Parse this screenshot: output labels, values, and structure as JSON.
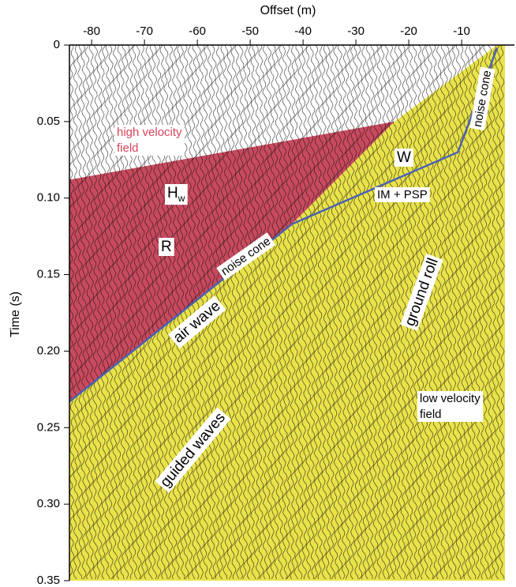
{
  "chart_data": {
    "type": "line",
    "x_label": "Offset (m)",
    "y_label": "Time (s)",
    "xlim": [
      -84.2,
      -1.8
    ],
    "ylim": [
      0,
      0.35
    ],
    "xticks": [
      -80,
      -70,
      -60,
      -50,
      -40,
      -30,
      -20,
      -10
    ],
    "yticks": [
      0,
      0.05,
      {
        "value": 0.1,
        "label": "0.10"
      },
      0.15,
      {
        "value": 0.2,
        "label": "0.20"
      },
      0.25,
      {
        "value": 0.3,
        "label": "0.30"
      },
      0.35
    ],
    "regions": [
      {
        "color": "#c84a5e",
        "x": [
          -84.2,
          -22.7,
          -42.1,
          -84.2
        ],
        "values": [
          0.088,
          0.05,
          0.117,
          0.233
        ]
      },
      {
        "color": "#e9e24a",
        "x": [
          -84.2,
          -42.1,
          -22.7,
          -3.3,
          -1.8,
          -1.8,
          -84.2
        ],
        "values": [
          0.233,
          0.117,
          0.05,
          0,
          0,
          0.35,
          0.35
        ]
      }
    ],
    "series": [
      {
        "color": "#4a62b4",
        "x": [
          -84.2,
          -42.1,
          -10.7,
          -3.3
        ],
        "values": [
          0.233,
          0.117,
          0.07,
          0.002
        ]
      }
    ],
    "annotations": [
      [
        "high velocity",
        "field"
      ],
      [
        "H",
        "w"
      ],
      [
        "R"
      ],
      [
        "W"
      ],
      [
        "IM + PSP"
      ],
      [
        "noise cone"
      ],
      [
        "noise cone"
      ],
      [
        "air wave"
      ],
      [
        "ground roll"
      ],
      [
        "guided waves"
      ],
      [
        "low velocity",
        "field"
      ]
    ]
  }
}
